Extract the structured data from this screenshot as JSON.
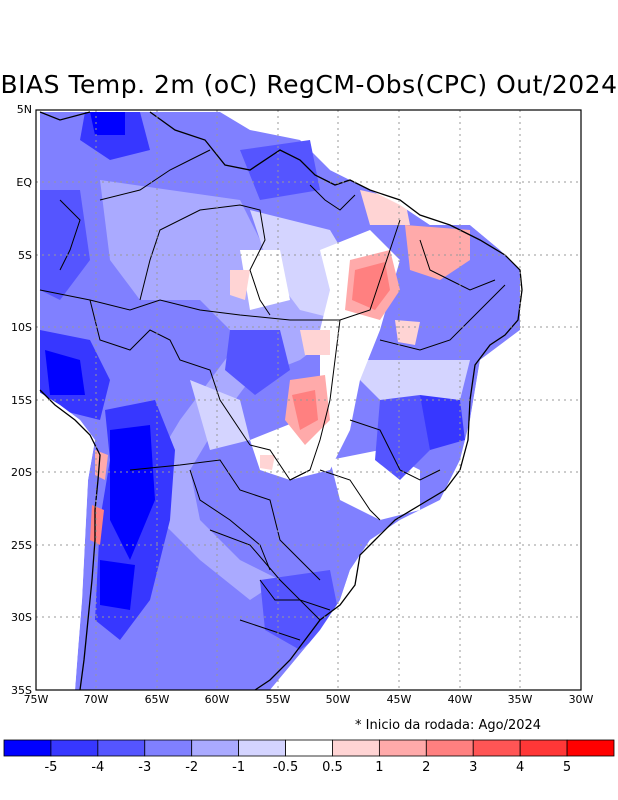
{
  "title": "BIAS Temp. 2m (oC) RegCM-Obs(CPC) Out/2024",
  "note": "* Inicio da rodada: Ago/2024",
  "lat_labels": [
    "5N",
    "EQ",
    "5S",
    "10S",
    "15S",
    "20S",
    "25S",
    "30S",
    "35S"
  ],
  "lon_labels": [
    "75W",
    "70W",
    "65W",
    "60W",
    "55W",
    "50W",
    "45W",
    "40W",
    "35W",
    "30W"
  ],
  "colorbar": {
    "colors": [
      "#0000ff",
      "#3737ff",
      "#5555ff",
      "#8080ff",
      "#aaaaff",
      "#d4d4ff",
      "#ffffff",
      "#ffd4d4",
      "#ffaaaa",
      "#ff8080",
      "#ff5555",
      "#ff3737",
      "#ff0000"
    ],
    "tick_labels": [
      "-5",
      "-4",
      "-3",
      "-2",
      "-1",
      "-0.5",
      "0.5",
      "1",
      "2",
      "3",
      "4",
      "5"
    ]
  }
}
